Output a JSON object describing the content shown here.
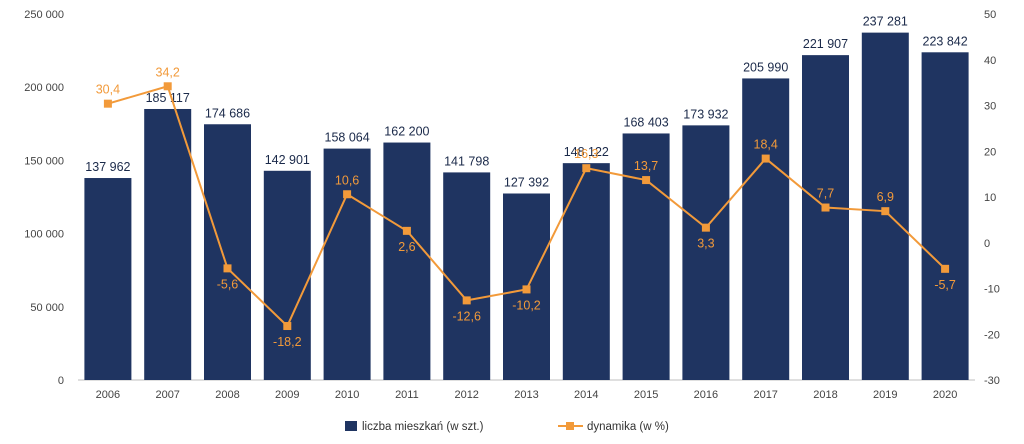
{
  "colors": {
    "bar": "#1f3461",
    "line": "#f29a3a",
    "axis_text": "#444444",
    "background": "#ffffff"
  },
  "chart_data": {
    "type": "bar",
    "categories": [
      "2006",
      "2007",
      "2008",
      "2009",
      "2010",
      "2011",
      "2012",
      "2013",
      "2014",
      "2015",
      "2016",
      "2017",
      "2018",
      "2019",
      "2020"
    ],
    "series": [
      {
        "name": "liczba mieszkań (w szt.)",
        "type": "bar",
        "axis": "left",
        "values": [
          137962,
          185117,
          174686,
          142901,
          158064,
          162200,
          141798,
          127392,
          148122,
          168403,
          173932,
          205990,
          221907,
          237281,
          223842
        ],
        "labels": [
          "137 962",
          "185 117",
          "174 686",
          "142 901",
          "158 064",
          "162 200",
          "141 798",
          "127 392",
          "148 122",
          "168 403",
          "173 932",
          "205 990",
          "221 907",
          "237 281",
          "223 842"
        ]
      },
      {
        "name": "dynamika  (w %)",
        "type": "line",
        "axis": "right",
        "values": [
          30.4,
          34.2,
          -5.6,
          -18.2,
          10.6,
          2.6,
          -12.6,
          -10.2,
          16.3,
          13.7,
          3.3,
          18.4,
          7.7,
          6.9,
          -5.7
        ],
        "labels": [
          "30,4",
          "34,2",
          "-5,6",
          "-18,2",
          "10,6",
          "2,6",
          "-12,6",
          "-10,2",
          "16,3",
          "13,7",
          "3,3",
          "18,4",
          "7,7",
          "6,9",
          "-5,7"
        ]
      }
    ],
    "ylim_left": [
      0,
      250000
    ],
    "ylim_right": [
      -30,
      50
    ],
    "left_ticks": [
      0,
      50000,
      100000,
      150000,
      200000,
      250000
    ],
    "left_tick_labels": [
      "0",
      "50 000",
      "100 000",
      "150 000",
      "200 000",
      "250 000"
    ],
    "right_ticks": [
      -30,
      -20,
      -10,
      0,
      10,
      20,
      30,
      40,
      50
    ],
    "right_tick_labels": [
      "-30",
      "-20",
      "-10",
      "0",
      "10",
      "20",
      "30",
      "40",
      "50"
    ],
    "grid": false,
    "legend_position": "bottom-center"
  }
}
